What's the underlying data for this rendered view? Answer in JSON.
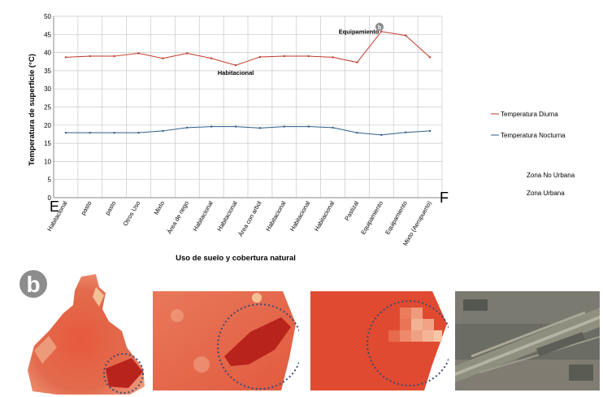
{
  "chart_data": {
    "type": "line",
    "ylabel": "Temperatura de superficie (°C)",
    "xlabel": "Uso de suelo y cobertura natural",
    "ylim": [
      0,
      50
    ],
    "yticks": [
      0,
      5,
      10,
      15,
      20,
      25,
      30,
      35,
      40,
      45,
      50
    ],
    "grid": true,
    "legend_position": "right",
    "categories": [
      "Habitacional",
      "pasto",
      "pasto",
      "Otros Uso",
      "Mixto",
      "Área de riego",
      "Habitacional",
      "Habitacional",
      "Área con arbol",
      "Habitacional",
      "Habitacional",
      "Habitacional",
      "Pastizal",
      "Equipamiento",
      "Equipamiento",
      "Mixto (Aeropuerto)"
    ],
    "series": [
      {
        "name": "Temperatura Diurna",
        "color": "#c0392b",
        "values": [
          38.7,
          39.0,
          39.0,
          39.8,
          38.4,
          39.8,
          38.4,
          36.5,
          38.8,
          39.0,
          39.0,
          38.7,
          37.3,
          45.8,
          44.7,
          38.7
        ]
      },
      {
        "name": "Temperatura Nocturna",
        "color": "#2e5d8a",
        "values": [
          17.9,
          17.9,
          17.9,
          17.9,
          18.4,
          19.3,
          19.6,
          19.6,
          19.2,
          19.6,
          19.6,
          19.3,
          17.9,
          17.3,
          18.0,
          18.4
        ]
      }
    ],
    "annotations": [
      {
        "text": "Equipamiento",
        "category_index": 13
      },
      {
        "text": "Habitacional",
        "category_index": 7
      }
    ],
    "extra_legend": [
      "Zona No Urbana",
      "Zona Urbana"
    ],
    "corner_labels": {
      "left": "E",
      "right": "F"
    }
  },
  "panel_label": "b",
  "marker_label": "b",
  "colors": {
    "grid": "#c8c8c8",
    "circle": "#3b4a73",
    "heat_dark": "#b8231c",
    "heat_mid": "#e0553d",
    "heat_light": "#f0a07a"
  },
  "icons": [
    "circle-b-label-icon",
    "dotted-circle-icon"
  ]
}
